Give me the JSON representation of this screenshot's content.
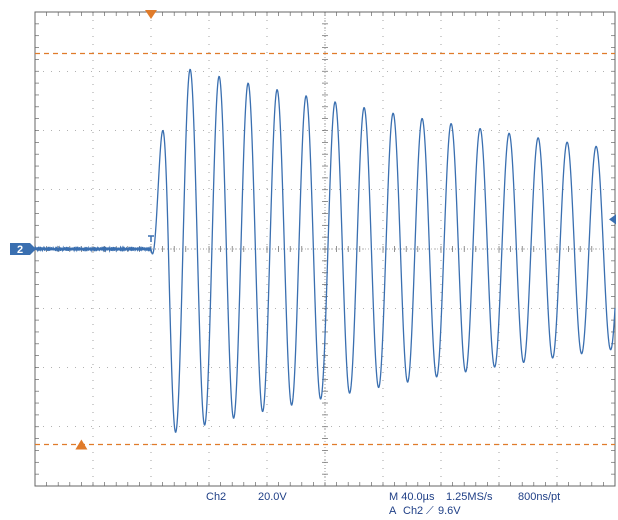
{
  "chart_data": {
    "type": "line",
    "title": "",
    "xlabel": "",
    "ylabel": "",
    "x_divisions": 10,
    "y_divisions": 8,
    "grid": true,
    "waveform": {
      "channel": "Ch2",
      "color": "#3a6fb0",
      "baseline_marker": "2",
      "trigger_position_div": 0.2,
      "pre_trigger_noise_div": 0.04,
      "freq_per_div": 2.0,
      "phase_frac": 0.9,
      "amp_start_div": 3.2,
      "amp_end_div": 1.7,
      "decay_per_div": 0.08,
      "clip_top_div": 3.3,
      "clip_bottom_div": -3.45
    },
    "cursors": {
      "upper_div": 3.3,
      "lower_div": -3.3,
      "color": "#e07b2a"
    },
    "readouts": {
      "channel": "Ch2",
      "volts_per_div": "20.0V",
      "timebase": "M 40.0µs",
      "sample_rate": "1.25MS/s",
      "record": "800ns/pt",
      "trigger_mode": "A",
      "trigger_source": "Ch2",
      "trigger_slope": "⟋",
      "trigger_level": "9.6V"
    }
  },
  "colors": {
    "grid": "#666666",
    "trace": "#3a6fb0",
    "text": "#1f3f86",
    "cursor": "#e07b2a"
  }
}
